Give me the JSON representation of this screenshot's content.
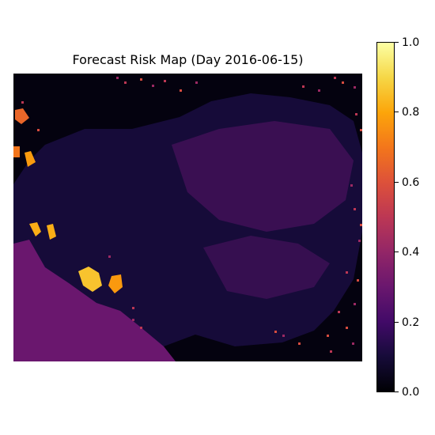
{
  "chart_data": {
    "type": "heatmap",
    "title": "Forecast Risk Map (Day 2016-06-15)",
    "xlabel": "",
    "ylabel": "",
    "colormap": "inferno",
    "colorbar": {
      "range": [
        0.0,
        1.0
      ],
      "ticks": [
        "0.0",
        "0.2",
        "0.4",
        "0.6",
        "0.8",
        "1.0"
      ]
    },
    "axes_visible": false,
    "regions": [
      {
        "name": "background",
        "value": 0.02
      },
      {
        "name": "main-landmass",
        "value": 0.1
      },
      {
        "name": "landmass-highlights",
        "value": 0.27
      },
      {
        "name": "southwest-region",
        "value": 0.3
      },
      {
        "name": "hotspot-west",
        "value": 0.82
      },
      {
        "name": "hotspot-southwest",
        "value": 0.86
      },
      {
        "name": "scattered-edge-pixels",
        "value": 0.5
      }
    ]
  }
}
